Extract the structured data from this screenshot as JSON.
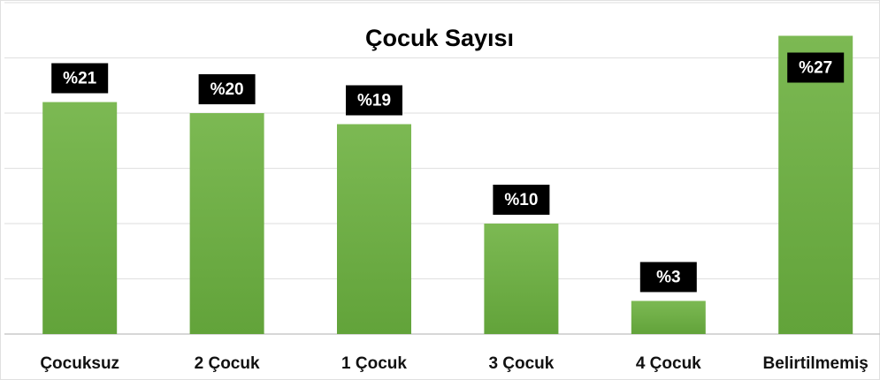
{
  "chart_data": {
    "type": "bar",
    "title": "Çocuk Sayısı",
    "categories": [
      "Çocuksuz",
      "2 Çocuk",
      "1 Çocuk",
      "3 Çocuk",
      "4 Çocuk",
      "Belirtilmemiş"
    ],
    "values": [
      21,
      20,
      19,
      10,
      3,
      27
    ],
    "value_labels": [
      "%21",
      "%20",
      "%19",
      "%10",
      "%3",
      "%27"
    ],
    "color": "#70ad47",
    "ylim": [
      0,
      30
    ],
    "yticks": [
      0,
      5,
      10,
      15,
      20,
      25,
      30
    ],
    "grid": true
  }
}
